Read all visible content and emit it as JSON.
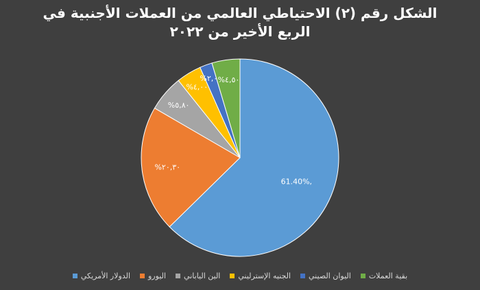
{
  "chart_data": {
    "type": "pie",
    "title_line1": "الشكل رقم (٢) الاحتياطي العالمي من العملات الأجنبية في",
    "title_line2": "الربع الأخير من ٢٠٢٢",
    "slices": [
      {
        "name": "الدولار الأمريكي",
        "value": 61.4,
        "label": "61.40%,",
        "color": "#5b9bd5"
      },
      {
        "name": "اليورو",
        "value": 20.3,
        "label": "%٢٠,٣٠",
        "color": "#ed7d31"
      },
      {
        "name": "الين الياباني",
        "value": 5.8,
        "label": "%٥,٨٠",
        "color": "#a5a5a5"
      },
      {
        "name": "الجنيه الإسترليني",
        "value": 4.0,
        "label": "%٤,٠٠",
        "color": "#ffc000"
      },
      {
        "name": "اليوان الصيني",
        "value": 2.0,
        "label": "%٢,٠٠",
        "color": "#4472c4"
      },
      {
        "name": "بقية العملات",
        "value": 4.5,
        "label": "%٤,٥٠",
        "color": "#70ad47"
      }
    ],
    "legend_position": "bottom"
  }
}
